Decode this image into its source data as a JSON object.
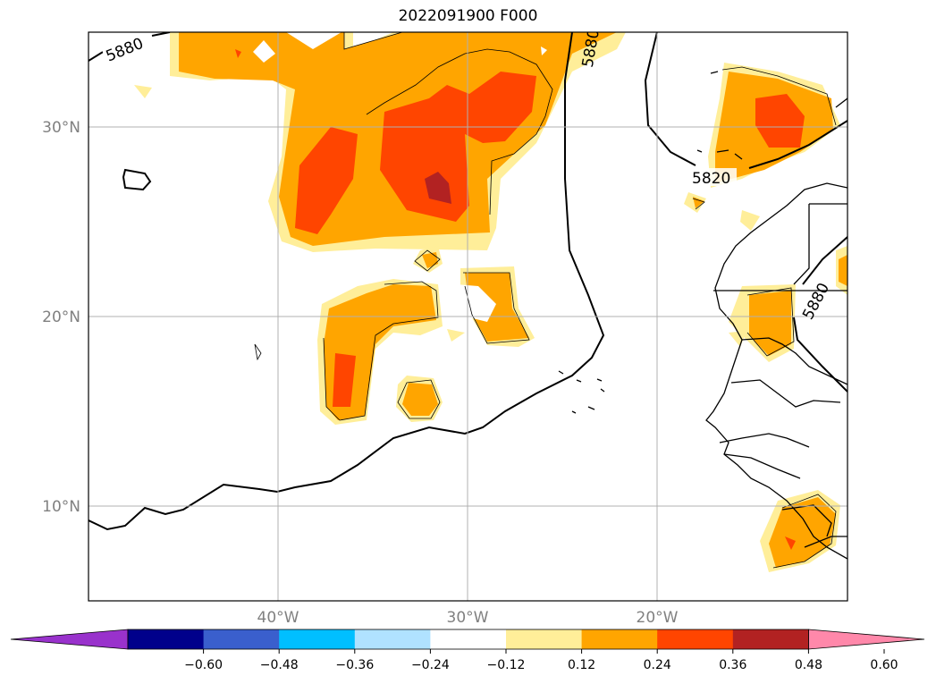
{
  "title": "2022091900 F000",
  "map": {
    "extent": {
      "lon": [
        -50,
        -10
      ],
      "lat": [
        5,
        35
      ]
    },
    "lat_labels": [
      {
        "value": 30,
        "label": "30°N"
      },
      {
        "value": 20,
        "label": "20°N"
      },
      {
        "value": 10,
        "label": "10°N"
      }
    ],
    "lon_labels": [
      {
        "value": -40,
        "label": "40°W"
      },
      {
        "value": -30,
        "label": "30°W"
      },
      {
        "value": -20,
        "label": "20°W"
      }
    ],
    "contour_labels": [
      "5880",
      "5880",
      "5820",
      "5880"
    ],
    "shading_field_colors": {
      "0.12-0.24": "#ffee99",
      "0.24-0.36": "#ffa500",
      "0.36-0.48": "#ff4500",
      "0.48-0.60": "#b22222"
    },
    "coastline_color": "#000000"
  },
  "colorbar": {
    "ticks": [
      "−0.60",
      "−0.48",
      "−0.36",
      "−0.24",
      "−0.12",
      "0.12",
      "0.24",
      "0.36",
      "0.48",
      "0.60"
    ],
    "colors": [
      "#9932cc",
      "#00008b",
      "#3a5fcd",
      "#00bfff",
      "#b0e2ff",
      "#ffffff",
      "#ffee99",
      "#ffa500",
      "#ff4500",
      "#b22222",
      "#ff88aa"
    ],
    "extend": "both"
  }
}
